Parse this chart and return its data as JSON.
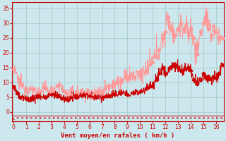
{
  "title": "",
  "xlabel": "Vent moyen/en rafales ( km/h )",
  "xlabel_color": "#cc0000",
  "bg_color": "#cce8ee",
  "grid_color": "#aacccc",
  "line1_color": "#ff9999",
  "line2_color": "#cc0000",
  "marker_color": "#cc0000",
  "xlim": [
    -0.1,
    16.6
  ],
  "ylim": [
    -3,
    37
  ],
  "xticks": [
    0,
    1,
    2,
    3,
    4,
    5,
    6,
    7,
    8,
    9,
    10,
    11,
    12,
    13,
    14,
    15,
    16
  ],
  "yticks": [
    0,
    5,
    10,
    15,
    20,
    25,
    30,
    35
  ],
  "figsize": [
    3.2,
    2.0
  ],
  "dpi": 100,
  "gust_x": [
    0,
    0.5,
    1,
    1.5,
    2,
    2.5,
    3,
    3.5,
    4,
    4.5,
    5,
    5.5,
    6,
    6.5,
    7,
    7.5,
    8,
    8.5,
    9,
    9.5,
    10,
    10.5,
    11,
    11.2,
    11.5,
    11.8,
    12,
    12.2,
    12.5,
    12.8,
    13,
    13.2,
    13.5,
    13.8,
    14,
    14.2,
    14.5,
    14.8,
    15,
    15.2,
    15.4,
    15.6,
    15.8,
    16,
    16.2,
    16.5
  ],
  "gust_y": [
    14.5,
    9.5,
    8,
    7.5,
    7,
    8,
    7,
    9,
    7,
    6,
    7,
    6.5,
    6,
    7,
    7,
    9,
    9.5,
    10,
    12,
    12,
    12.5,
    14,
    17,
    19,
    21,
    25,
    27,
    32,
    28,
    26,
    28,
    30,
    28,
    27,
    28,
    25,
    19.5,
    27,
    30,
    32,
    28,
    26,
    29,
    27,
    25,
    25
  ],
  "mean_x": [
    0,
    0.3,
    0.5,
    1,
    1.5,
    2,
    2.5,
    3,
    3.5,
    4,
    4.3,
    4.5,
    5,
    5.5,
    6,
    6.5,
    7,
    7.5,
    8,
    8.5,
    9,
    9.5,
    10,
    10.5,
    11,
    11.3,
    11.5,
    11.8,
    12,
    12.3,
    12.5,
    12.8,
    13,
    13.2,
    13.5,
    13.8,
    14,
    14.2,
    14.5,
    14.8,
    15,
    15.2,
    15.5,
    15.8,
    16,
    16.2,
    16.5
  ],
  "mean_y": [
    8.5,
    6.5,
    5,
    4.5,
    4.5,
    5.5,
    5,
    6,
    5.5,
    4.5,
    4,
    5,
    5,
    6,
    5.5,
    5,
    5,
    5.5,
    6,
    6.5,
    6,
    6.5,
    7,
    8,
    9,
    11,
    13,
    15,
    13,
    15,
    15.5,
    16,
    15,
    14,
    14.5,
    15,
    14,
    11,
    9.5,
    11,
    13,
    12,
    11.5,
    12,
    11.5,
    13,
    16
  ]
}
